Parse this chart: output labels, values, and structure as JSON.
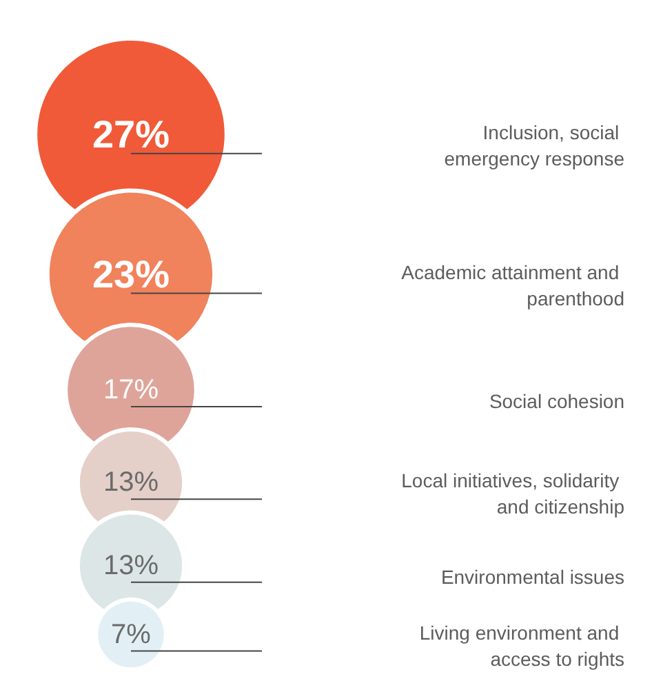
{
  "chart_data": {
    "type": "other",
    "categories": [
      "Inclusion, social emergency response",
      "Academic attainment and parenthood",
      "Social cohesion",
      "Local initiatives, solidarity and citizenship",
      "Environmental issues",
      "Living environment and access to rights"
    ],
    "values": [
      27,
      23,
      17,
      13,
      13,
      7
    ],
    "value_labels": [
      "27%",
      "23%",
      "17%",
      "13%",
      "13%",
      "7%"
    ],
    "colors": [
      "#f05a38",
      "#f0825c",
      "#dea49a",
      "#e5cfc9",
      "#dde6e6",
      "#e2f0f5"
    ]
  }
}
